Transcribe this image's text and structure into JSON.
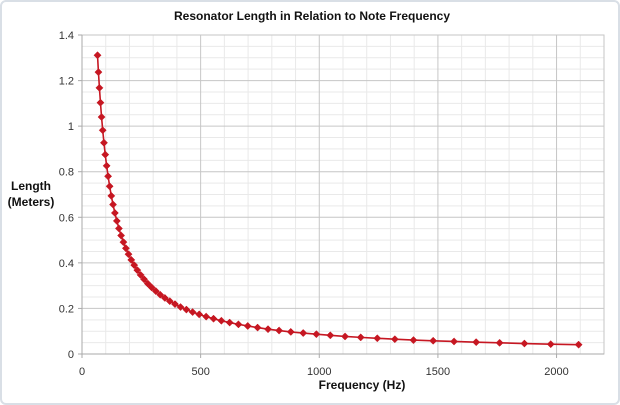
{
  "chart_data": {
    "type": "line",
    "title": "Resonator Length in Relation to Note Frequency",
    "xlabel": "Frequency (Hz)",
    "ylabel_lines": [
      "Length",
      "(Meters)"
    ],
    "xlim": [
      0,
      2200
    ],
    "ylim": [
      0,
      1.4
    ],
    "x_major_ticks": [
      0,
      500,
      1000,
      1500,
      2000
    ],
    "x_minor_step": 100,
    "y_major_step": 0.2,
    "y_minor_step": 0.05,
    "grid": true,
    "legend": "none",
    "series": [
      {
        "marker": "diamond",
        "color": "#c61722",
        "x": [
          65.41,
          69.3,
          73.42,
          77.78,
          82.41,
          87.31,
          92.5,
          98,
          103.83,
          110,
          116.54,
          123.47,
          130.81,
          138.59,
          146.83,
          155.56,
          164.81,
          174.61,
          185,
          196,
          207.65,
          220,
          233.08,
          246.94,
          261.63,
          277.18,
          293.66,
          311.13,
          329.63,
          349.23,
          369.99,
          392,
          415.3,
          440,
          466.16,
          493.88,
          523.25,
          554.37,
          587.33,
          622.25,
          659.26,
          698.46,
          739.99,
          783.99,
          830.61,
          880,
          932.33,
          987.77,
          1046.5,
          1108.73,
          1174.66,
          1244.51,
          1318.51,
          1396.91,
          1479.98,
          1567.98,
          1661.22,
          1760,
          1864.66,
          1975.53,
          2093
        ],
        "y": [
          1.311,
          1.237,
          1.168,
          1.103,
          1.04,
          0.982,
          0.927,
          0.875,
          0.826,
          0.78,
          0.736,
          0.694,
          0.656,
          0.619,
          0.584,
          0.551,
          0.52,
          0.491,
          0.464,
          0.438,
          0.413,
          0.39,
          0.368,
          0.347,
          0.328,
          0.309,
          0.292,
          0.276,
          0.26,
          0.246,
          0.232,
          0.219,
          0.206,
          0.195,
          0.184,
          0.174,
          0.164,
          0.155,
          0.146,
          0.138,
          0.13,
          0.123,
          0.116,
          0.109,
          0.103,
          0.097,
          0.092,
          0.087,
          0.082,
          0.077,
          0.073,
          0.069,
          0.065,
          0.061,
          0.058,
          0.055,
          0.052,
          0.049,
          0.046,
          0.043,
          0.041
        ]
      }
    ],
    "colors": {
      "series": "#c61722",
      "grid_minor": "#e9e9e9",
      "grid_major": "#c6c6c6",
      "axis": "#aaaaaa",
      "tick_text": "#333333",
      "title_text": "#111111",
      "background": "#ffffff"
    }
  }
}
